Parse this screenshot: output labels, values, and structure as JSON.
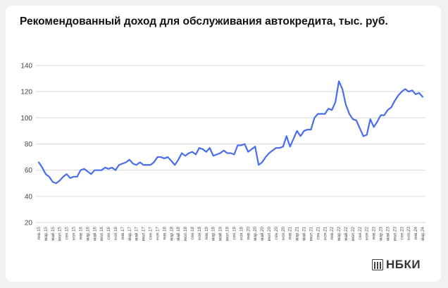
{
  "chart_data": {
    "type": "line",
    "title": "Рекомендованный доход для обслуживания автокредита, тыс. руб.",
    "xlabel": "",
    "ylabel": "",
    "ylim": [
      20,
      140
    ],
    "yticks": [
      20,
      40,
      60,
      80,
      100,
      120,
      140
    ],
    "grid": "horizontal",
    "line_color": "#4a6cf0",
    "x": [
      "янв.15",
      "фев.15",
      "мар.15",
      "апр.15",
      "май.15",
      "июн.15",
      "июл.15",
      "авг.15",
      "сен.15",
      "окт.15",
      "ноя.15",
      "дек.15",
      "янв.16",
      "фев.16",
      "мар.16",
      "апр.16",
      "май.16",
      "июн.16",
      "июл.16",
      "авг.16",
      "сен.16",
      "окт.16",
      "ноя.16",
      "дек.16",
      "янв.17",
      "фев.17",
      "мар.17",
      "апр.17",
      "май.17",
      "июн.17",
      "июл.17",
      "авг.17",
      "сен.17",
      "окт.17",
      "ноя.17",
      "дек.17",
      "янв.18",
      "фев.18",
      "мар.18",
      "апр.18",
      "май.18",
      "июн.18",
      "июл.18",
      "авг.18",
      "сен.18",
      "окт.18",
      "ноя.18",
      "дек.18",
      "янв.19",
      "фев.19",
      "мар.19",
      "апр.19",
      "май.19",
      "июн.19",
      "июл.19",
      "авг.19",
      "сен.19",
      "окт.19",
      "ноя.19",
      "дек.19",
      "янв.20",
      "фев.20",
      "мар.20",
      "апр.20",
      "май.20",
      "июн.20",
      "июл.20",
      "авг.20",
      "сен.20",
      "окт.20",
      "ноя.20",
      "дек.20",
      "янв.21",
      "фев.21",
      "мар.21",
      "апр.21",
      "май.21",
      "июн.21",
      "июл.21",
      "авг.21",
      "сен.21",
      "окт.21",
      "ноя.21",
      "дек.21",
      "янв.22",
      "фев.22",
      "мар.22",
      "апр.22",
      "май.22",
      "июн.22",
      "июл.22",
      "авг.22",
      "сен.22",
      "окт.22",
      "ноя.22",
      "дек.22",
      "янв.23",
      "фев.23",
      "мар.23",
      "апр.23",
      "май.23",
      "июн.23",
      "июл.23",
      "авг.23",
      "сен.23",
      "окт.23",
      "ноя.23",
      "дек.23",
      "янв.24",
      "фев.24",
      "мар.24"
    ],
    "x_tick_labels": [
      "янв.15",
      "мар.15",
      "май.15",
      "июл.15",
      "сен.15",
      "ноя.15",
      "янв.16",
      "мар.16",
      "май.16",
      "июл.16",
      "сен.16",
      "ноя.16",
      "янв.17",
      "мар.17",
      "май.17",
      "июл.17",
      "сен.17",
      "ноя.17",
      "янв.18",
      "мар.18",
      "май.18",
      "июл.18",
      "сен.18",
      "ноя.18",
      "янв.19",
      "мар.19",
      "май.19",
      "июл.19",
      "сен.19",
      "ноя.19",
      "янв.20",
      "мар.20",
      "май.20",
      "июл.20",
      "сен.20",
      "ноя.20",
      "янв.21",
      "мар.21",
      "май.21",
      "июл.21",
      "сен.21",
      "ноя.21",
      "янв.22",
      "мар.22",
      "май.22",
      "июл.22",
      "сен.22",
      "ноя.22",
      "янв.23",
      "мар.23",
      "май.23",
      "июл.23",
      "сен.23",
      "ноя.23",
      "янв.24",
      "мар.24"
    ],
    "series": [
      {
        "values": [
          66,
          62,
          57,
          55,
          51,
          50,
          52,
          55,
          57,
          54,
          55,
          55,
          60,
          61,
          59,
          57,
          60,
          60,
          60,
          62,
          61,
          62,
          60,
          64,
          65,
          66,
          68,
          65,
          64,
          66,
          64,
          64,
          64,
          66,
          70,
          70,
          69,
          70,
          67,
          64,
          68,
          73,
          71,
          73,
          74,
          72,
          77,
          76,
          74,
          77,
          71,
          72,
          73,
          75,
          73,
          73,
          72,
          79,
          79,
          80,
          74,
          76,
          78,
          64,
          66,
          70,
          73,
          75,
          77,
          77,
          78,
          86,
          78,
          84,
          90,
          86,
          90,
          91,
          91,
          100,
          103,
          103,
          103,
          107,
          106,
          112,
          128,
          122,
          110,
          103,
          99,
          98,
          92,
          86,
          87,
          99,
          93,
          97,
          102,
          102,
          106,
          108,
          113,
          117,
          120,
          122,
          120,
          121,
          118,
          119,
          116
        ]
      }
    ]
  },
  "logo": {
    "text": "НБКИ"
  }
}
